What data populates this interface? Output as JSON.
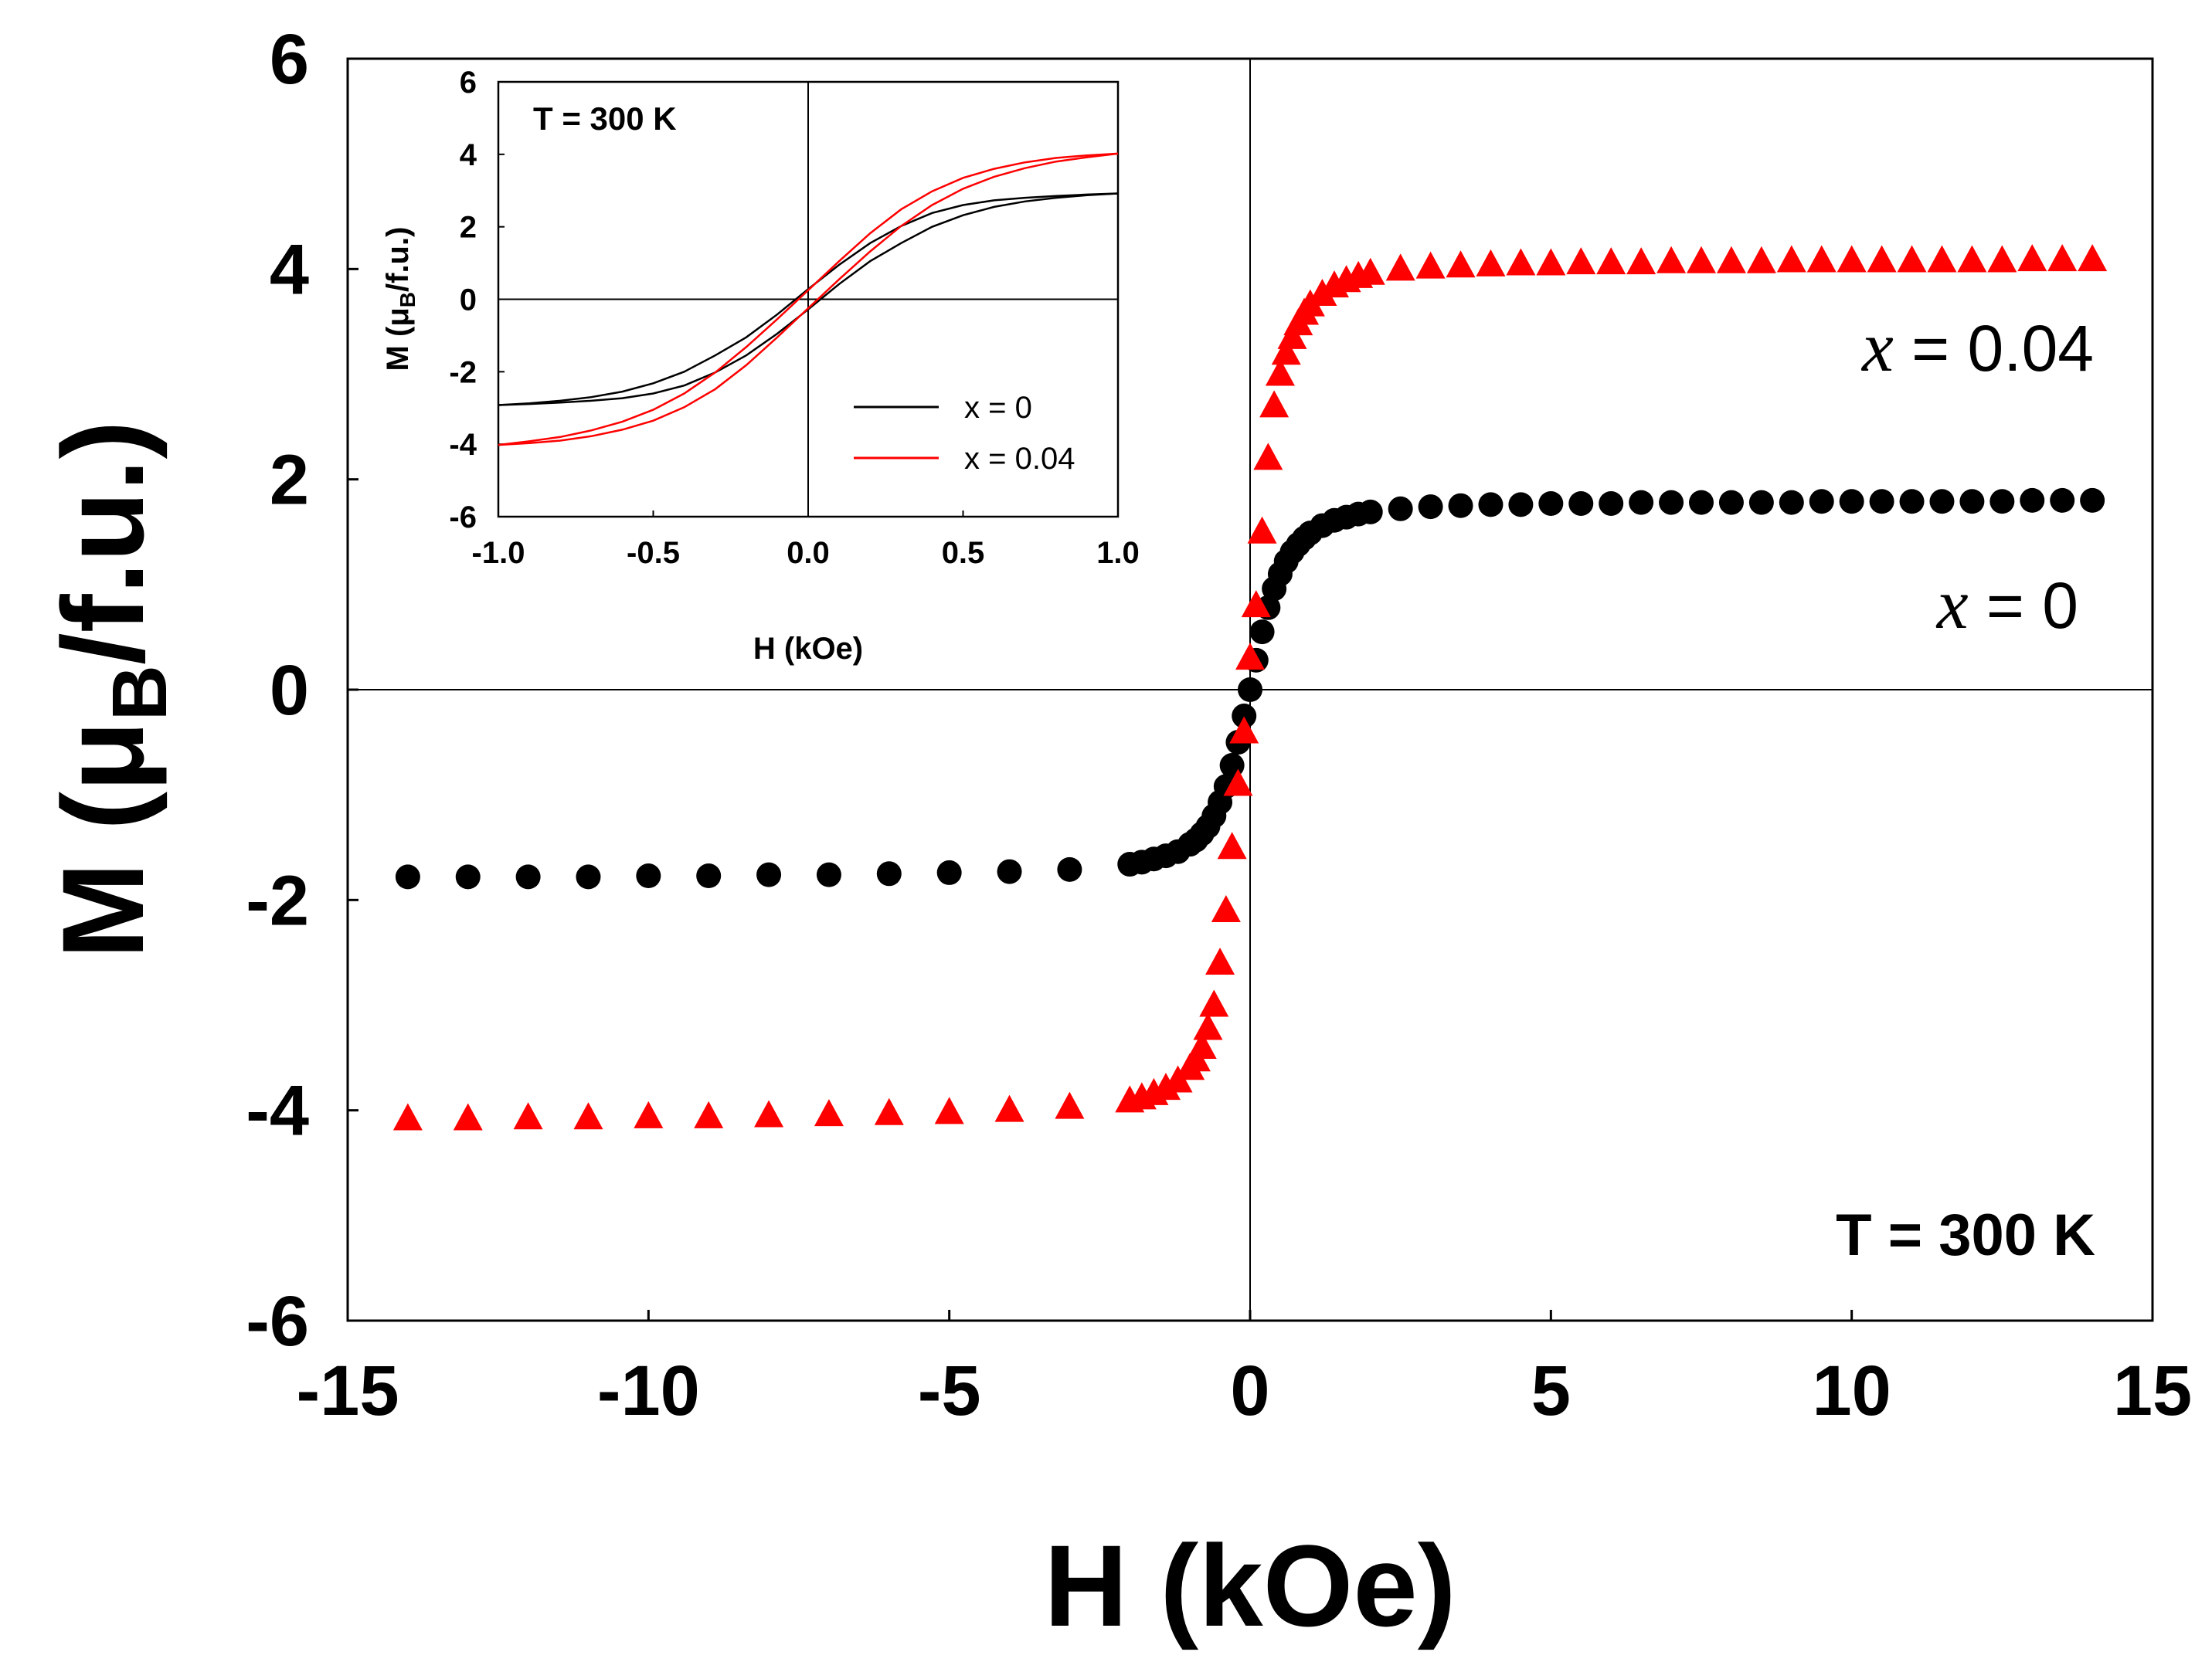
{
  "chart_data": [
    {
      "id": "main",
      "type": "scatter",
      "title": "",
      "xlabel": "H (kOe)",
      "ylabel_prefix": "M (μ",
      "ylabel_sub": "B",
      "ylabel_suffix": "/f.u.)",
      "xlim": [
        -15,
        15
      ],
      "ylim": [
        -6,
        6
      ],
      "xticks": [
        -15,
        -10,
        -5,
        0,
        5,
        10,
        15
      ],
      "yticks": [
        -6,
        -4,
        -2,
        0,
        2,
        4,
        6
      ],
      "xtick_labels": [
        "-15",
        "-10",
        "-5",
        "0",
        "5",
        "10",
        "15"
      ],
      "ytick_labels": [
        "-6",
        "-4",
        "-2",
        "0",
        "2",
        "4",
        "6"
      ],
      "annotations": {
        "x004_var": "x",
        "x004_rest": " = 0.04",
        "x0_var": "x",
        "x0_rest": " = 0",
        "temperature": "T = 300 K"
      },
      "series": [
        {
          "name": "x = 0",
          "marker": "circle",
          "color": "#000000",
          "x": [
            -14,
            -13,
            -12,
            -11,
            -10,
            -9,
            -8,
            -7,
            -6,
            -5,
            -4,
            -3,
            -2,
            -1.8,
            -1.6,
            -1.4,
            -1.2,
            -1.0,
            -0.9,
            -0.8,
            -0.7,
            -0.6,
            -0.5,
            -0.4,
            -0.3,
            -0.2,
            -0.1,
            0,
            0.1,
            0.2,
            0.3,
            0.4,
            0.5,
            0.6,
            0.7,
            0.8,
            0.9,
            1.0,
            1.2,
            1.4,
            1.6,
            1.8,
            2,
            2.5,
            3,
            3.5,
            4,
            4.5,
            5,
            5.5,
            6,
            6.5,
            7,
            7.5,
            8,
            8.5,
            9,
            9.5,
            10,
            10.5,
            11,
            11.5,
            12,
            12.5,
            13,
            13.5,
            14
          ],
          "y": [
            -1.78,
            -1.78,
            -1.78,
            -1.78,
            -1.77,
            -1.77,
            -1.76,
            -1.76,
            -1.75,
            -1.74,
            -1.73,
            -1.71,
            -1.66,
            -1.64,
            -1.61,
            -1.58,
            -1.54,
            -1.47,
            -1.43,
            -1.37,
            -1.3,
            -1.2,
            -1.07,
            -0.92,
            -0.72,
            -0.5,
            -0.25,
            0,
            0.28,
            0.55,
            0.78,
            0.96,
            1.1,
            1.22,
            1.31,
            1.38,
            1.44,
            1.49,
            1.56,
            1.61,
            1.64,
            1.67,
            1.69,
            1.72,
            1.74,
            1.75,
            1.76,
            1.76,
            1.77,
            1.77,
            1.77,
            1.78,
            1.78,
            1.78,
            1.78,
            1.78,
            1.78,
            1.79,
            1.79,
            1.79,
            1.79,
            1.79,
            1.79,
            1.79,
            1.8,
            1.8,
            1.8
          ]
        },
        {
          "name": "x = 0.04",
          "marker": "triangle",
          "color": "#ff0000",
          "x": [
            -14,
            -13,
            -12,
            -11,
            -10,
            -9,
            -8,
            -7,
            -6,
            -5,
            -4,
            -3,
            -2,
            -1.8,
            -1.6,
            -1.4,
            -1.2,
            -1.0,
            -0.9,
            -0.8,
            -0.7,
            -0.6,
            -0.5,
            -0.4,
            -0.3,
            -0.2,
            -0.1,
            0,
            0.1,
            0.2,
            0.3,
            0.4,
            0.5,
            0.6,
            0.7,
            0.8,
            0.9,
            1.0,
            1.2,
            1.4,
            1.6,
            1.8,
            2,
            2.5,
            3,
            3.5,
            4,
            4.5,
            5,
            5.5,
            6,
            6.5,
            7,
            7.5,
            8,
            8.5,
            9,
            9.5,
            10,
            10.5,
            11,
            11.5,
            12,
            12.5,
            13,
            13.5,
            14
          ],
          "y": [
            -4.08,
            -4.08,
            -4.07,
            -4.07,
            -4.06,
            -4.06,
            -4.05,
            -4.04,
            -4.03,
            -4.02,
            -4.0,
            -3.97,
            -3.91,
            -3.88,
            -3.84,
            -3.79,
            -3.72,
            -3.6,
            -3.52,
            -3.4,
            -3.22,
            -3.0,
            -2.6,
            -2.1,
            -1.5,
            -0.9,
            -0.4,
            0.3,
            0.8,
            1.5,
            2.2,
            2.7,
            3.0,
            3.2,
            3.35,
            3.48,
            3.58,
            3.66,
            3.76,
            3.84,
            3.89,
            3.93,
            3.96,
            4.0,
            4.02,
            4.03,
            4.04,
            4.05,
            4.05,
            4.06,
            4.06,
            4.06,
            4.07,
            4.07,
            4.07,
            4.07,
            4.08,
            4.08,
            4.08,
            4.08,
            4.08,
            4.08,
            4.08,
            4.08,
            4.09,
            4.09,
            4.09
          ]
        }
      ]
    },
    {
      "id": "inset",
      "type": "line",
      "title": "",
      "xlabel": "H (kOe)",
      "ylabel_prefix": "M (μ",
      "ylabel_sub": "B",
      "ylabel_suffix": "/f.u.)",
      "xlim": [
        -1.0,
        1.0
      ],
      "ylim": [
        -6,
        6
      ],
      "xticks": [
        -1.0,
        -0.5,
        0.0,
        0.5,
        1.0
      ],
      "yticks": [
        -6,
        -4,
        -2,
        0,
        2,
        4,
        6
      ],
      "xtick_labels": [
        "-1.0",
        "-0.5",
        "0.0",
        "0.5",
        "1.0"
      ],
      "ytick_labels": [
        "-6",
        "-4",
        "-2",
        "0",
        "2",
        "4",
        "6"
      ],
      "annotations": {
        "temperature": "T = 300 K"
      },
      "legend_position": "bottom-right",
      "series": [
        {
          "name": "x = 0",
          "color": "#000000",
          "loop": true,
          "x": [
            -1.0,
            -0.9,
            -0.8,
            -0.7,
            -0.6,
            -0.5,
            -0.4,
            -0.3,
            -0.2,
            -0.1,
            0.0,
            0.1,
            0.2,
            0.3,
            0.4,
            0.5,
            0.6,
            0.7,
            0.8,
            0.9,
            1.0
          ],
          "y_descending": [
            -2.92,
            -2.89,
            -2.85,
            -2.8,
            -2.73,
            -2.6,
            -2.38,
            -2.02,
            -1.55,
            -0.95,
            -0.28,
            0.42,
            1.05,
            1.55,
            2.0,
            2.32,
            2.55,
            2.7,
            2.8,
            2.87,
            2.92
          ],
          "y_ascending": [
            -2.92,
            -2.87,
            -2.8,
            -2.7,
            -2.55,
            -2.32,
            -2.0,
            -1.55,
            -1.05,
            -0.42,
            0.28,
            0.95,
            1.55,
            2.02,
            2.38,
            2.6,
            2.73,
            2.8,
            2.85,
            2.89,
            2.92
          ]
        },
        {
          "name": "x = 0.04",
          "color": "#ff0000",
          "loop": true,
          "x": [
            -1.0,
            -0.9,
            -0.8,
            -0.7,
            -0.6,
            -0.5,
            -0.4,
            -0.3,
            -0.2,
            -0.1,
            0.0,
            0.1,
            0.2,
            0.3,
            0.4,
            0.5,
            0.6,
            0.7,
            0.8,
            0.9,
            1.0
          ],
          "y_descending": [
            -4.02,
            -3.92,
            -3.8,
            -3.62,
            -3.38,
            -3.05,
            -2.6,
            -2.02,
            -1.32,
            -0.55,
            0.25,
            1.05,
            1.82,
            2.48,
            2.98,
            3.35,
            3.6,
            3.78,
            3.9,
            3.97,
            4.02
          ],
          "y_ascending": [
            -4.02,
            -3.97,
            -3.9,
            -3.78,
            -3.6,
            -3.35,
            -2.98,
            -2.48,
            -1.82,
            -1.05,
            -0.25,
            0.55,
            1.32,
            2.02,
            2.6,
            3.05,
            3.38,
            3.62,
            3.8,
            3.92,
            4.02
          ]
        }
      ]
    }
  ]
}
